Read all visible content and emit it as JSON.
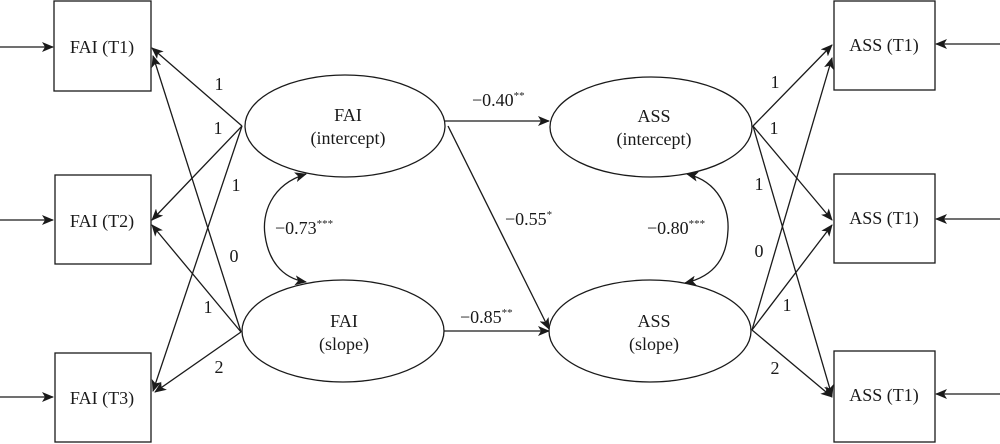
{
  "observed_left": [
    {
      "label": "FAI (T1)"
    },
    {
      "label": "FAI (T2)"
    },
    {
      "label": "FAI (T3)"
    }
  ],
  "observed_right": [
    {
      "label": "ASS (T1)"
    },
    {
      "label": "ASS (T1)"
    },
    {
      "label": "ASS (T1)"
    }
  ],
  "latent": {
    "fai_intercept": {
      "line1": "FAI",
      "line2": "(intercept)"
    },
    "fai_slope": {
      "line1": "FAI",
      "line2": "(slope)"
    },
    "ass_intercept": {
      "line1": "ASS",
      "line2": "(intercept)"
    },
    "ass_slope": {
      "line1": "ASS",
      "line2": "(slope)"
    }
  },
  "loadings_left": [
    "1",
    "1",
    "1",
    "0",
    "1",
    "2"
  ],
  "loadings_right": [
    "1",
    "1",
    "1",
    "0",
    "1",
    "2"
  ],
  "paths": {
    "fai_int_to_ass_int": {
      "value": "−0.40",
      "sig": "**"
    },
    "fai_int_to_ass_slope": {
      "value": "−0.55",
      "sig": "*"
    },
    "fai_slope_to_ass_slope": {
      "value": "−0.85",
      "sig": "**"
    }
  },
  "covariances": {
    "fai": {
      "value": "−0.73",
      "sig": "***"
    },
    "ass": {
      "value": "−0.80",
      "sig": "***"
    }
  }
}
